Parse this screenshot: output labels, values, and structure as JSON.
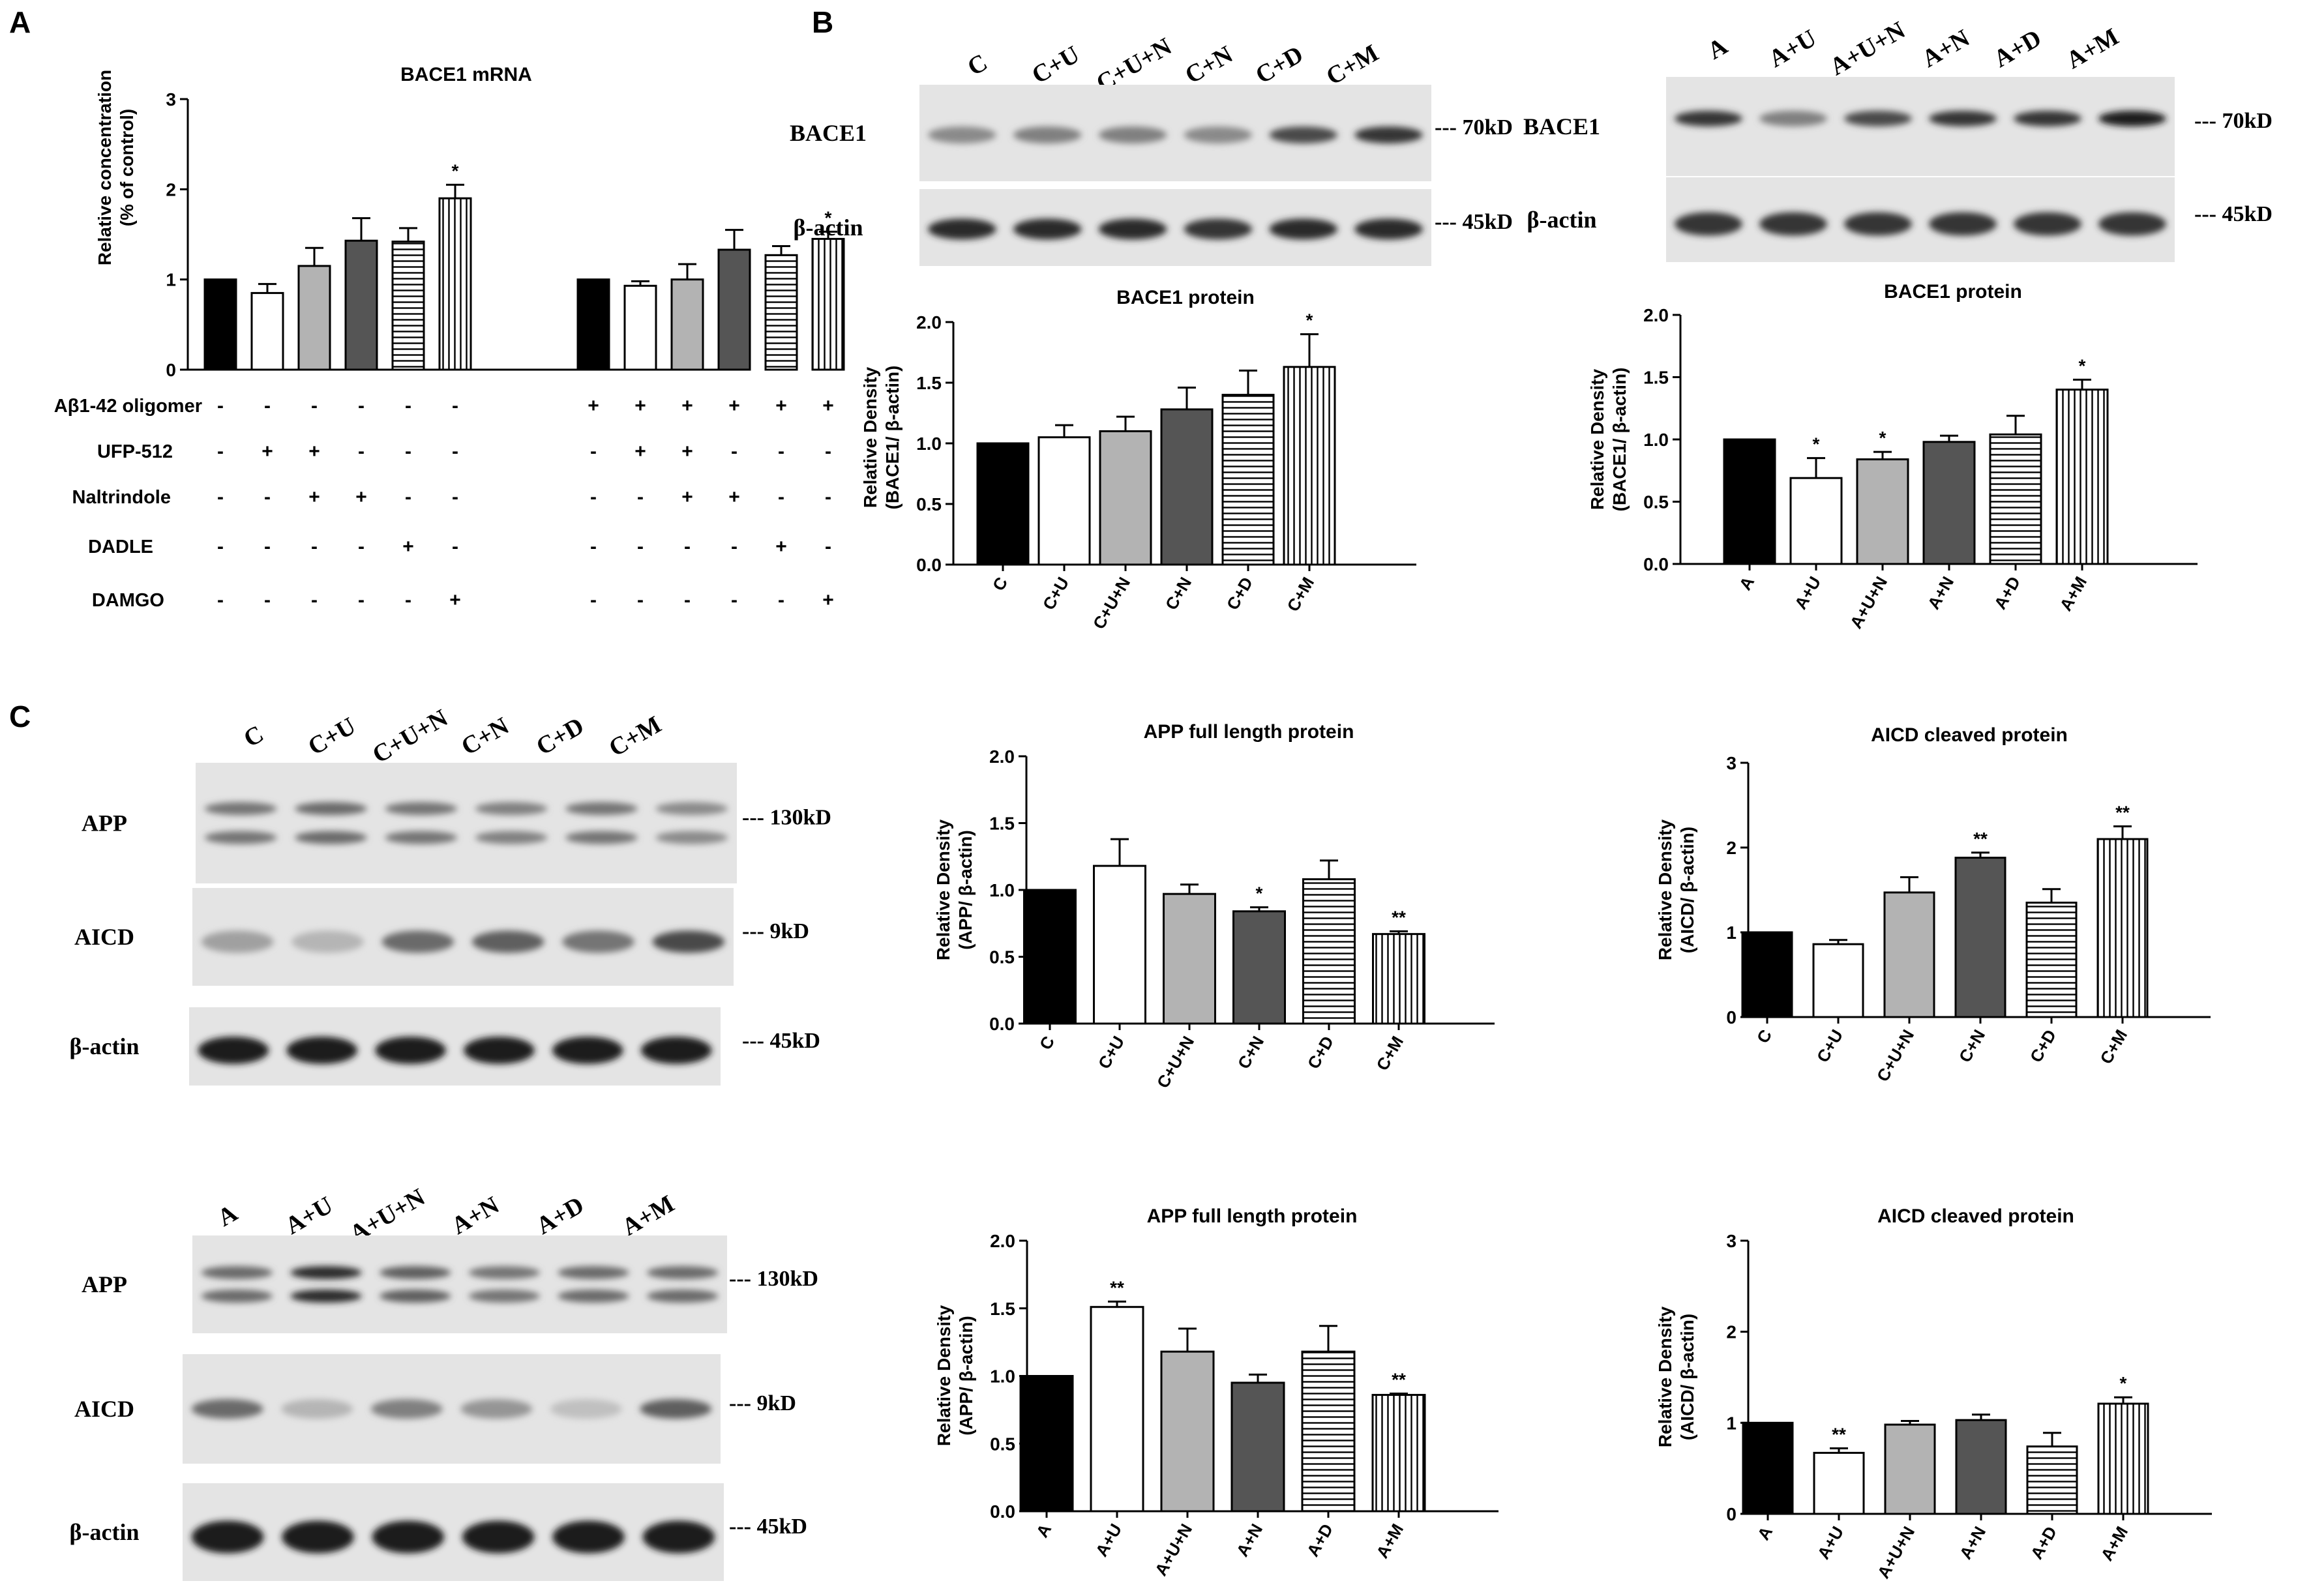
{
  "panel_labels": [
    "A",
    "B",
    "C"
  ],
  "blots": [
    {
      "id": "b1",
      "lanes": [
        "C",
        "C+U",
        "C+U+N",
        "C+N",
        "C+D",
        "C+M"
      ],
      "strips": [
        {
          "label": "BACE1",
          "marker": "--- 70kD"
        },
        {
          "label": "β-actin",
          "marker": "--- 45kD"
        }
      ]
    },
    {
      "id": "b2",
      "lanes": [
        "A",
        "A+U",
        "A+U+N",
        "A+N",
        "A+D",
        "A+M"
      ],
      "strips": [
        {
          "label": "BACE1",
          "marker": "--- 70kD"
        },
        {
          "label": "β-actin",
          "marker": "--- 45kD"
        }
      ]
    },
    {
      "id": "c1",
      "lanes": [
        "C",
        "C+U",
        "C+U+N",
        "C+N",
        "C+D",
        "C+M"
      ],
      "strips": [
        {
          "label": "APP",
          "marker": "--- 130kD"
        },
        {
          "label": "AICD",
          "marker": "--- 9kD"
        },
        {
          "label": "β-actin",
          "marker": "--- 45kD"
        }
      ]
    },
    {
      "id": "c2",
      "lanes": [
        "A",
        "A+U",
        "A+U+N",
        "A+N",
        "A+D",
        "A+M"
      ],
      "strips": [
        {
          "label": "APP",
          "marker": "--- 130kD"
        },
        {
          "label": "AICD",
          "marker": "--- 9kD"
        },
        {
          "label": "β-actin",
          "marker": "--- 45kD"
        }
      ]
    }
  ],
  "treatment_table": {
    "rows": [
      {
        "label": "Aβ1-42 oligomer",
        "signs": [
          "-",
          "-",
          "-",
          "-",
          "-",
          "-",
          "+",
          "+",
          "+",
          "+",
          "+",
          "+"
        ]
      },
      {
        "label": "UFP-512",
        "signs": [
          "-",
          "+",
          "+",
          "-",
          "-",
          "-",
          "-",
          "+",
          "+",
          "-",
          "-",
          "-"
        ]
      },
      {
        "label": "Naltrindole",
        "signs": [
          "-",
          "-",
          "+",
          "+",
          "-",
          "-",
          "-",
          "-",
          "+",
          "+",
          "-",
          "-"
        ]
      },
      {
        "label": "DADLE",
        "signs": [
          "-",
          "-",
          "-",
          "-",
          "+",
          "-",
          "-",
          "-",
          "-",
          "-",
          "+",
          "-"
        ]
      },
      {
        "label": "DAMGO",
        "signs": [
          "-",
          "-",
          "-",
          "-",
          "-",
          "+",
          "-",
          "-",
          "-",
          "-",
          "-",
          "+"
        ]
      }
    ]
  },
  "chart_data": [
    {
      "id": "A",
      "type": "bar",
      "title": "BACE1 mRNA",
      "ylabel": [
        "Relative concentration",
        "(% of control)"
      ],
      "ylim": [
        0,
        3
      ],
      "yticks": [
        "0",
        "1",
        "2",
        "3"
      ],
      "categories": [
        "",
        "",
        "",
        "",
        "",
        "",
        "",
        "",
        "",
        "",
        "",
        ""
      ],
      "values": [
        1.0,
        0.85,
        1.15,
        1.43,
        1.42,
        1.9,
        1.0,
        0.93,
        1.0,
        1.33,
        1.27,
        1.45
      ],
      "errors": [
        0,
        0.1,
        0.2,
        0.25,
        0.15,
        0.15,
        0,
        0.05,
        0.17,
        0.22,
        0.1,
        0.08
      ],
      "annotations": [
        "",
        "",
        "",
        "",
        "",
        "*",
        "",
        "",
        "",
        "",
        "",
        "*"
      ],
      "fills": [
        "black",
        "white",
        "lightgray",
        "darkgray",
        "hlines",
        "vlines",
        "black",
        "white",
        "lightgray",
        "darkgray",
        "hlines",
        "vlines"
      ]
    },
    {
      "id": "B1",
      "type": "bar",
      "title": "BACE1 protein",
      "ylabel": [
        "Relative Density",
        "(BACE1/ β-actin)"
      ],
      "ylim": [
        0,
        2
      ],
      "yticks": [
        "0.0",
        "0.5",
        "1.0",
        "1.5",
        "2.0"
      ],
      "categories": [
        "C",
        "C+U",
        "C+U+N",
        "C+N",
        "C+D",
        "C+M"
      ],
      "values": [
        1.0,
        1.05,
        1.1,
        1.28,
        1.4,
        1.63
      ],
      "errors": [
        0,
        0.1,
        0.12,
        0.18,
        0.2,
        0.27
      ],
      "annotations": [
        "",
        "",
        "",
        "",
        "",
        "*"
      ],
      "fills": [
        "black",
        "white",
        "lightgray",
        "darkgray",
        "hlines",
        "vlines"
      ]
    },
    {
      "id": "B2",
      "type": "bar",
      "title": "BACE1 protein",
      "ylabel": [
        "Relative Density",
        "(BACE1/ β-actin)"
      ],
      "ylim": [
        0,
        2
      ],
      "yticks": [
        "0.0",
        "0.5",
        "1.0",
        "1.5",
        "2.0"
      ],
      "categories": [
        "A",
        "A+U",
        "A+U+N",
        "A+N",
        "A+D",
        "A+M"
      ],
      "values": [
        1.0,
        0.69,
        0.84,
        0.98,
        1.04,
        1.4
      ],
      "errors": [
        0,
        0.16,
        0.06,
        0.05,
        0.15,
        0.08
      ],
      "annotations": [
        "",
        "*",
        "*",
        "",
        "",
        "*"
      ],
      "fills": [
        "black",
        "white",
        "lightgray",
        "darkgray",
        "hlines",
        "vlines"
      ]
    },
    {
      "id": "C1",
      "type": "bar",
      "title": "APP full length protein",
      "ylabel": [
        "Relative Density",
        "(APP/ β-actin)"
      ],
      "ylim": [
        0,
        2
      ],
      "yticks": [
        "0.0",
        "0.5",
        "1.0",
        "1.5",
        "2.0"
      ],
      "categories": [
        "C",
        "C+U",
        "C+U+N",
        "C+N",
        "C+D",
        "C+M"
      ],
      "values": [
        1.0,
        1.18,
        0.97,
        0.84,
        1.08,
        0.67
      ],
      "errors": [
        0,
        0.2,
        0.07,
        0.03,
        0.14,
        0.02
      ],
      "annotations": [
        "",
        "",
        "",
        "*",
        "",
        "**"
      ],
      "fills": [
        "black",
        "white",
        "lightgray",
        "darkgray",
        "hlines",
        "vlines"
      ]
    },
    {
      "id": "C2",
      "type": "bar",
      "title": "AICD cleaved protein",
      "ylabel": [
        "Relative Density",
        "(AICD/ β-actin)"
      ],
      "ylim": [
        0,
        3
      ],
      "yticks": [
        "0",
        "1",
        "2",
        "3"
      ],
      "categories": [
        "C",
        "C+U",
        "C+U+N",
        "C+N",
        "C+D",
        "C+M"
      ],
      "values": [
        1.0,
        0.86,
        1.47,
        1.88,
        1.35,
        2.1
      ],
      "errors": [
        0,
        0.05,
        0.18,
        0.06,
        0.16,
        0.15
      ],
      "annotations": [
        "",
        "",
        "",
        "**",
        "",
        "**"
      ],
      "fills": [
        "black",
        "white",
        "lightgray",
        "darkgray",
        "hlines",
        "vlines"
      ]
    },
    {
      "id": "C3",
      "type": "bar",
      "title": "APP full length protein",
      "ylabel": [
        "Relative Density",
        "(APP/ β-actin)"
      ],
      "ylim": [
        0,
        2
      ],
      "yticks": [
        "0.0",
        "0.5",
        "1.0",
        "1.5",
        "2.0"
      ],
      "categories": [
        "A",
        "A+U",
        "A+U+N",
        "A+N",
        "A+D",
        "A+M"
      ],
      "values": [
        1.0,
        1.51,
        1.18,
        0.95,
        1.18,
        0.86
      ],
      "errors": [
        0,
        0.04,
        0.17,
        0.06,
        0.19,
        0.01
      ],
      "annotations": [
        "",
        "**",
        "",
        "",
        "",
        "**"
      ],
      "fills": [
        "black",
        "white",
        "lightgray",
        "darkgray",
        "hlines",
        "vlines"
      ]
    },
    {
      "id": "C4",
      "type": "bar",
      "title": "AICD cleaved protein",
      "ylabel": [
        "Relative Density",
        "(AICD/ β-actin)"
      ],
      "ylim": [
        0,
        3
      ],
      "yticks": [
        "0",
        "1",
        "2",
        "3"
      ],
      "categories": [
        "A",
        "A+U",
        "A+U+N",
        "A+N",
        "A+D",
        "A+M"
      ],
      "values": [
        1.0,
        0.67,
        0.98,
        1.03,
        0.74,
        1.21
      ],
      "errors": [
        0,
        0.05,
        0.04,
        0.06,
        0.15,
        0.07
      ],
      "annotations": [
        "",
        "**",
        "",
        "",
        "",
        "*"
      ],
      "fills": [
        "black",
        "white",
        "lightgray",
        "darkgray",
        "hlines",
        "vlines"
      ]
    }
  ]
}
